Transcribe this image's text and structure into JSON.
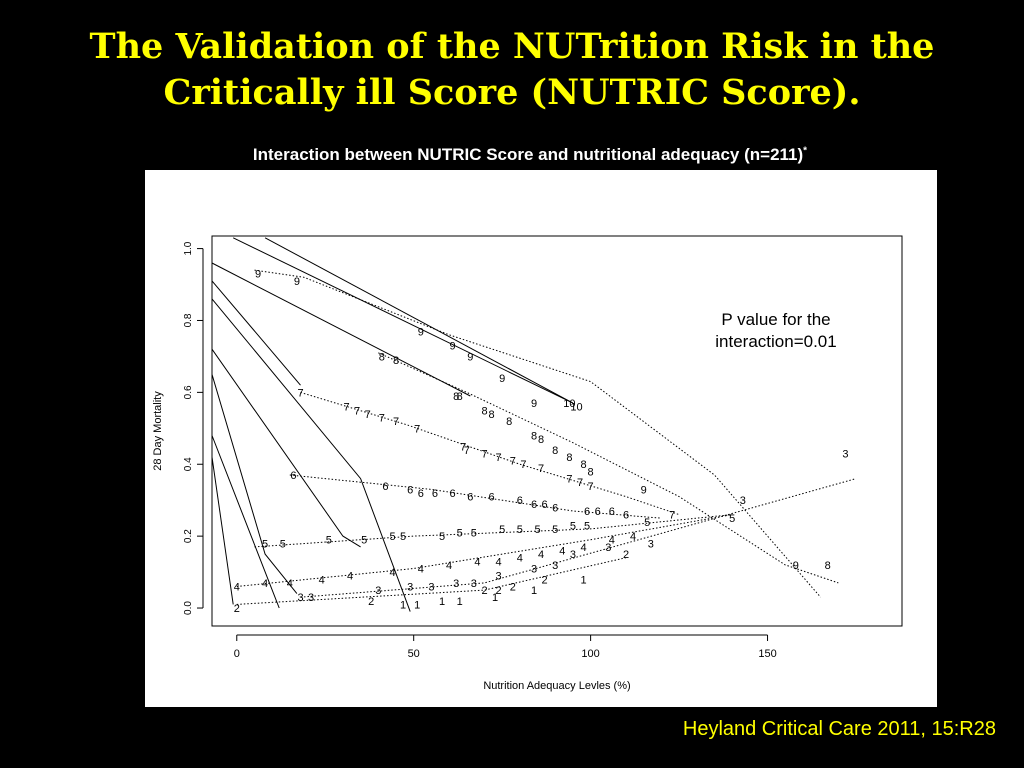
{
  "slide": {
    "title": "The Validation of the NUTrition Risk in the\nCritically ill Score (NUTRIC Score).",
    "caption": "Interaction between NUTRIC Score and nutritional adequacy (n=211)",
    "caption_marker": "*",
    "citation": "Heyland Critical Care 2011, 15:R28"
  },
  "colors": {
    "background": "#000000",
    "title": "#ffff00",
    "caption": "#ffffff",
    "citation": "#ffff00",
    "plot_bg": "#ffffff",
    "ink": "#000000"
  },
  "chart_data": {
    "type": "line",
    "xlabel": "Nutrition Adequacy Levles (%)",
    "ylabel": "28 Day Mortality",
    "xlim": [
      -7,
      188
    ],
    "ylim": [
      -0.05,
      1.035
    ],
    "x_ticks": [
      0,
      50,
      100,
      150
    ],
    "x_tick_labels": [
      "0",
      "50",
      "100",
      "150"
    ],
    "y_ticks": [
      0.0,
      0.2,
      0.4,
      0.6,
      0.8,
      1.0
    ],
    "y_tick_labels": [
      "0.0",
      "0.2",
      "0.4",
      "0.6",
      "0.8",
      "1.0"
    ],
    "grid": false,
    "legend": "none",
    "annotation": "P value for the\ninteraction=0.01",
    "solid_lines": [
      {
        "score": 10,
        "points": [
          [
            8,
            1.03
          ],
          [
            95,
            0.57
          ]
        ]
      },
      {
        "score": 9,
        "points": [
          [
            -1,
            1.03
          ],
          [
            95,
            0.57
          ]
        ]
      },
      {
        "score": 8,
        "points": [
          [
            -7,
            0.96
          ],
          [
            66,
            0.59
          ]
        ]
      },
      {
        "score": 7,
        "points": [
          [
            -7,
            0.91
          ],
          [
            18,
            0.62
          ]
        ]
      },
      {
        "score": 6,
        "points": [
          [
            -7,
            0.86
          ],
          [
            35,
            0.36
          ],
          [
            49,
            -0.01
          ]
        ]
      },
      {
        "score": 5,
        "points": [
          [
            -7,
            0.72
          ],
          [
            30,
            0.2
          ],
          [
            35,
            0.17
          ]
        ]
      },
      {
        "score": 4,
        "points": [
          [
            -7,
            0.65
          ],
          [
            8,
            0.15
          ],
          [
            17,
            0.04
          ]
        ]
      },
      {
        "score": 3,
        "points": [
          [
            -7,
            0.48
          ],
          [
            10,
            0.05
          ],
          [
            12,
            0.0
          ]
        ]
      },
      {
        "score": 2,
        "points": [
          [
            -7,
            0.42
          ],
          [
            -1,
            0.01
          ]
        ]
      }
    ],
    "dotted_lines": [
      {
        "score": 9,
        "points": [
          [
            5,
            0.94
          ],
          [
            19,
            0.92
          ],
          [
            60,
            0.76
          ],
          [
            100,
            0.63
          ],
          [
            135,
            0.37
          ],
          [
            165,
            0.03
          ]
        ]
      },
      {
        "score": 8,
        "points": [
          [
            40,
            0.71
          ],
          [
            65,
            0.6
          ],
          [
            95,
            0.46
          ],
          [
            125,
            0.31
          ],
          [
            155,
            0.12
          ],
          [
            170,
            0.07
          ]
        ]
      },
      {
        "score": 7,
        "points": [
          [
            18,
            0.6
          ],
          [
            48,
            0.51
          ],
          [
            80,
            0.4
          ],
          [
            110,
            0.31
          ],
          [
            125,
            0.26
          ]
        ]
      },
      {
        "score": 6,
        "points": [
          [
            15,
            0.37
          ],
          [
            55,
            0.33
          ],
          [
            95,
            0.27
          ],
          [
            120,
            0.25
          ]
        ]
      },
      {
        "score": 5,
        "points": [
          [
            5,
            0.17
          ],
          [
            50,
            0.2
          ],
          [
            100,
            0.22
          ],
          [
            140,
            0.26
          ]
        ]
      },
      {
        "score": 4,
        "points": [
          [
            0,
            0.06
          ],
          [
            50,
            0.11
          ],
          [
            100,
            0.19
          ],
          [
            140,
            0.26
          ]
        ]
      },
      {
        "score": 3,
        "points": [
          [
            18,
            0.03
          ],
          [
            70,
            0.07
          ],
          [
            110,
            0.18
          ],
          [
            175,
            0.36
          ]
        ]
      },
      {
        "score": 2,
        "points": [
          [
            0,
            0.01
          ],
          [
            70,
            0.05
          ],
          [
            110,
            0.14
          ]
        ]
      }
    ],
    "point_labels": [
      {
        "label": "10",
        "points": [
          [
            94,
            0.57
          ],
          [
            96,
            0.56
          ]
        ]
      },
      {
        "label": "9",
        "points": [
          [
            6,
            0.93
          ],
          [
            17,
            0.91
          ],
          [
            52,
            0.77
          ],
          [
            61,
            0.73
          ],
          [
            66,
            0.7
          ],
          [
            75,
            0.64
          ],
          [
            84,
            0.57
          ],
          [
            115,
            0.33
          ],
          [
            158,
            0.12
          ]
        ]
      },
      {
        "label": "8",
        "points": [
          [
            41,
            0.7
          ],
          [
            45,
            0.69
          ],
          [
            62,
            0.59
          ],
          [
            63,
            0.59
          ],
          [
            70,
            0.55
          ],
          [
            72,
            0.54
          ],
          [
            77,
            0.52
          ],
          [
            84,
            0.48
          ],
          [
            86,
            0.47
          ],
          [
            90,
            0.44
          ],
          [
            94,
            0.42
          ],
          [
            98,
            0.4
          ],
          [
            100,
            0.38
          ],
          [
            167,
            0.12
          ]
        ]
      },
      {
        "label": "7",
        "points": [
          [
            18,
            0.6
          ],
          [
            31,
            0.56
          ],
          [
            34,
            0.55
          ],
          [
            37,
            0.54
          ],
          [
            41,
            0.53
          ],
          [
            45,
            0.52
          ],
          [
            51,
            0.5
          ],
          [
            64,
            0.45
          ],
          [
            65,
            0.44
          ],
          [
            70,
            0.43
          ],
          [
            74,
            0.42
          ],
          [
            78,
            0.41
          ],
          [
            81,
            0.4
          ],
          [
            86,
            0.39
          ],
          [
            94,
            0.36
          ],
          [
            97,
            0.35
          ],
          [
            100,
            0.34
          ],
          [
            123,
            0.26
          ]
        ]
      },
      {
        "label": "6",
        "points": [
          [
            16,
            0.37
          ],
          [
            42,
            0.34
          ],
          [
            49,
            0.33
          ],
          [
            52,
            0.32
          ],
          [
            56,
            0.32
          ],
          [
            61,
            0.32
          ],
          [
            66,
            0.31
          ],
          [
            72,
            0.31
          ],
          [
            80,
            0.3
          ],
          [
            84,
            0.29
          ],
          [
            87,
            0.29
          ],
          [
            90,
            0.28
          ],
          [
            99,
            0.27
          ],
          [
            102,
            0.27
          ],
          [
            106,
            0.27
          ],
          [
            110,
            0.26
          ]
        ]
      },
      {
        "label": "5",
        "points": [
          [
            8,
            0.18
          ],
          [
            13,
            0.18
          ],
          [
            26,
            0.19
          ],
          [
            36,
            0.19
          ],
          [
            44,
            0.2
          ],
          [
            47,
            0.2
          ],
          [
            58,
            0.2
          ],
          [
            63,
            0.21
          ],
          [
            67,
            0.21
          ],
          [
            75,
            0.22
          ],
          [
            80,
            0.22
          ],
          [
            85,
            0.22
          ],
          [
            90,
            0.22
          ],
          [
            95,
            0.23
          ],
          [
            99,
            0.23
          ],
          [
            116,
            0.24
          ],
          [
            140,
            0.25
          ]
        ]
      },
      {
        "label": "4",
        "points": [
          [
            0,
            0.06
          ],
          [
            8,
            0.07
          ],
          [
            15,
            0.07
          ],
          [
            24,
            0.08
          ],
          [
            32,
            0.09
          ],
          [
            44,
            0.1
          ],
          [
            52,
            0.11
          ],
          [
            60,
            0.12
          ],
          [
            68,
            0.13
          ],
          [
            74,
            0.13
          ],
          [
            80,
            0.14
          ],
          [
            86,
            0.15
          ],
          [
            92,
            0.16
          ],
          [
            98,
            0.17
          ],
          [
            106,
            0.19
          ],
          [
            112,
            0.2
          ]
        ]
      },
      {
        "label": "3",
        "points": [
          [
            18,
            0.03
          ],
          [
            21,
            0.03
          ],
          [
            40,
            0.05
          ],
          [
            49,
            0.06
          ],
          [
            55,
            0.06
          ],
          [
            62,
            0.07
          ],
          [
            67,
            0.07
          ],
          [
            74,
            0.09
          ],
          [
            84,
            0.11
          ],
          [
            90,
            0.12
          ],
          [
            95,
            0.15
          ],
          [
            105,
            0.17
          ],
          [
            117,
            0.18
          ],
          [
            143,
            0.3
          ],
          [
            172,
            0.43
          ]
        ]
      },
      {
        "label": "2",
        "points": [
          [
            0,
            0.0
          ],
          [
            38,
            0.02
          ],
          [
            70,
            0.05
          ],
          [
            74,
            0.05
          ],
          [
            78,
            0.06
          ],
          [
            87,
            0.08
          ],
          [
            110,
            0.15
          ]
        ]
      },
      {
        "label": "1",
        "points": [
          [
            47,
            0.01
          ],
          [
            51,
            0.01
          ],
          [
            58,
            0.02
          ],
          [
            63,
            0.02
          ],
          [
            73,
            0.03
          ],
          [
            84,
            0.05
          ],
          [
            98,
            0.08
          ]
        ]
      }
    ]
  }
}
